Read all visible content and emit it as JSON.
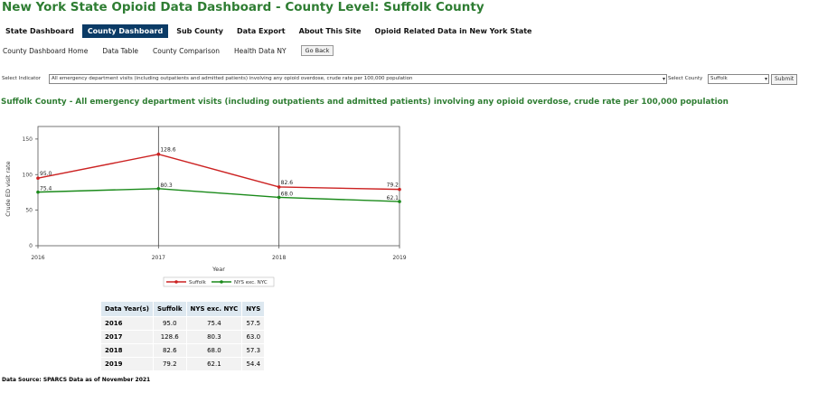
{
  "page_title": "New York State Opioid Data Dashboard - County Level: Suffolk County",
  "tabs": [
    "State Dashboard",
    "County Dashboard",
    "Sub County",
    "Data Export",
    "About This Site",
    "Opioid Related Data in New York State"
  ],
  "active_tab": "County Dashboard",
  "subnav": {
    "links": [
      "County Dashboard Home",
      "Data Table",
      "County Comparison",
      "Health Data NY"
    ],
    "go_back": "Go Back"
  },
  "filters": {
    "indicator_label": "Select Indicator",
    "indicator_value": "All emergency department visits (including outpatients and admitted patients) involving any opioid overdose, crude rate per 100,000 population",
    "county_label": "Select County",
    "county_value": "Suffolk",
    "submit": "Submit"
  },
  "chart_title": "Suffolk County - All emergency department visits (including outpatients and admitted patients) involving any opioid overdose, crude rate per 100,000 population",
  "chart_data": {
    "type": "line",
    "x": [
      "2016",
      "2017",
      "2018",
      "2019"
    ],
    "series": [
      {
        "name": "Suffolk",
        "values": [
          95.0,
          128.6,
          82.6,
          79.2
        ],
        "color": "#cc2222"
      },
      {
        "name": "NYS exc. NYC",
        "values": [
          75.4,
          80.3,
          68.0,
          62.1
        ],
        "color": "#1a8a1a"
      }
    ],
    "xlabel": "Year",
    "ylabel": "Crude ED visit rate",
    "ylim": [
      0,
      160
    ],
    "yticks": [
      0,
      50,
      100,
      150
    ],
    "grid": "vertical",
    "legend_position": "bottom"
  },
  "table": {
    "headers": [
      "Data Year(s)",
      "Suffolk",
      "NYS exc. NYC",
      "NYS"
    ],
    "rows": [
      [
        "2016",
        "95.0",
        "75.4",
        "57.5"
      ],
      [
        "2017",
        "128.6",
        "80.3",
        "63.0"
      ],
      [
        "2018",
        "82.6",
        "68.0",
        "57.3"
      ],
      [
        "2019",
        "79.2",
        "62.1",
        "54.4"
      ]
    ]
  },
  "source": "Data Source: SPARCS Data as of November 2021"
}
